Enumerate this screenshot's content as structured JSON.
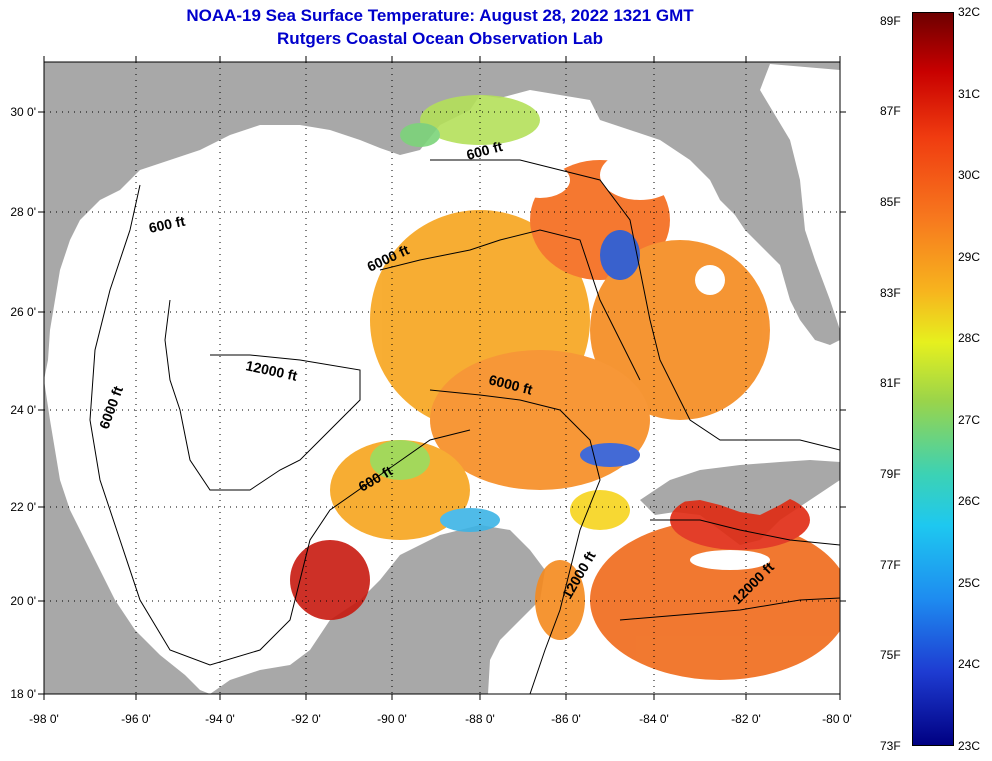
{
  "title_line1": "NOAA-19 Sea Surface Temperature:  August 28, 2022 1321 GMT",
  "title_line2": "Rutgers Coastal Ocean Observation Lab",
  "lat_labels": [
    "30 0'",
    "28 0'",
    "26 0'",
    "24 0'",
    "22 0'",
    "20 0'",
    "18 0'"
  ],
  "lon_labels": [
    "-98 0'",
    "-96 0'",
    "-94 0'",
    "-92 0'",
    "-90 0'",
    "-88 0'",
    "-86 0'",
    "-84 0'",
    "-82 0'",
    "-80 0'"
  ],
  "colorbar": {
    "fahrenheit_labels": [
      "89F",
      "87F",
      "85F",
      "83F",
      "81F",
      "79F",
      "77F",
      "75F",
      "73F"
    ],
    "celsius_labels": [
      "32C",
      "31C",
      "30C",
      "29C",
      "28C",
      "27C",
      "26C",
      "25C",
      "24C",
      "23C"
    ],
    "range_c": [
      23,
      32
    ],
    "range_f": [
      73,
      89
    ]
  },
  "contour_labels": [
    {
      "id": "c600-ne",
      "text": "600 ft"
    },
    {
      "id": "c600-nw",
      "text": "600 ft"
    },
    {
      "id": "c6000-n",
      "text": "6000 ft"
    },
    {
      "id": "c12000-w",
      "text": "12000 ft"
    },
    {
      "id": "c6000-c",
      "text": "6000 ft"
    },
    {
      "id": "c6000-w",
      "text": "6000 ft"
    },
    {
      "id": "c600-s",
      "text": "600 ft"
    },
    {
      "id": "c12000-s",
      "text": "12000 ft"
    },
    {
      "id": "c12000-se",
      "text": "12000 ft"
    }
  ],
  "colors": {
    "land": "#a8a8a8",
    "cloud": "#ffffff",
    "title": "#0000cc"
  }
}
